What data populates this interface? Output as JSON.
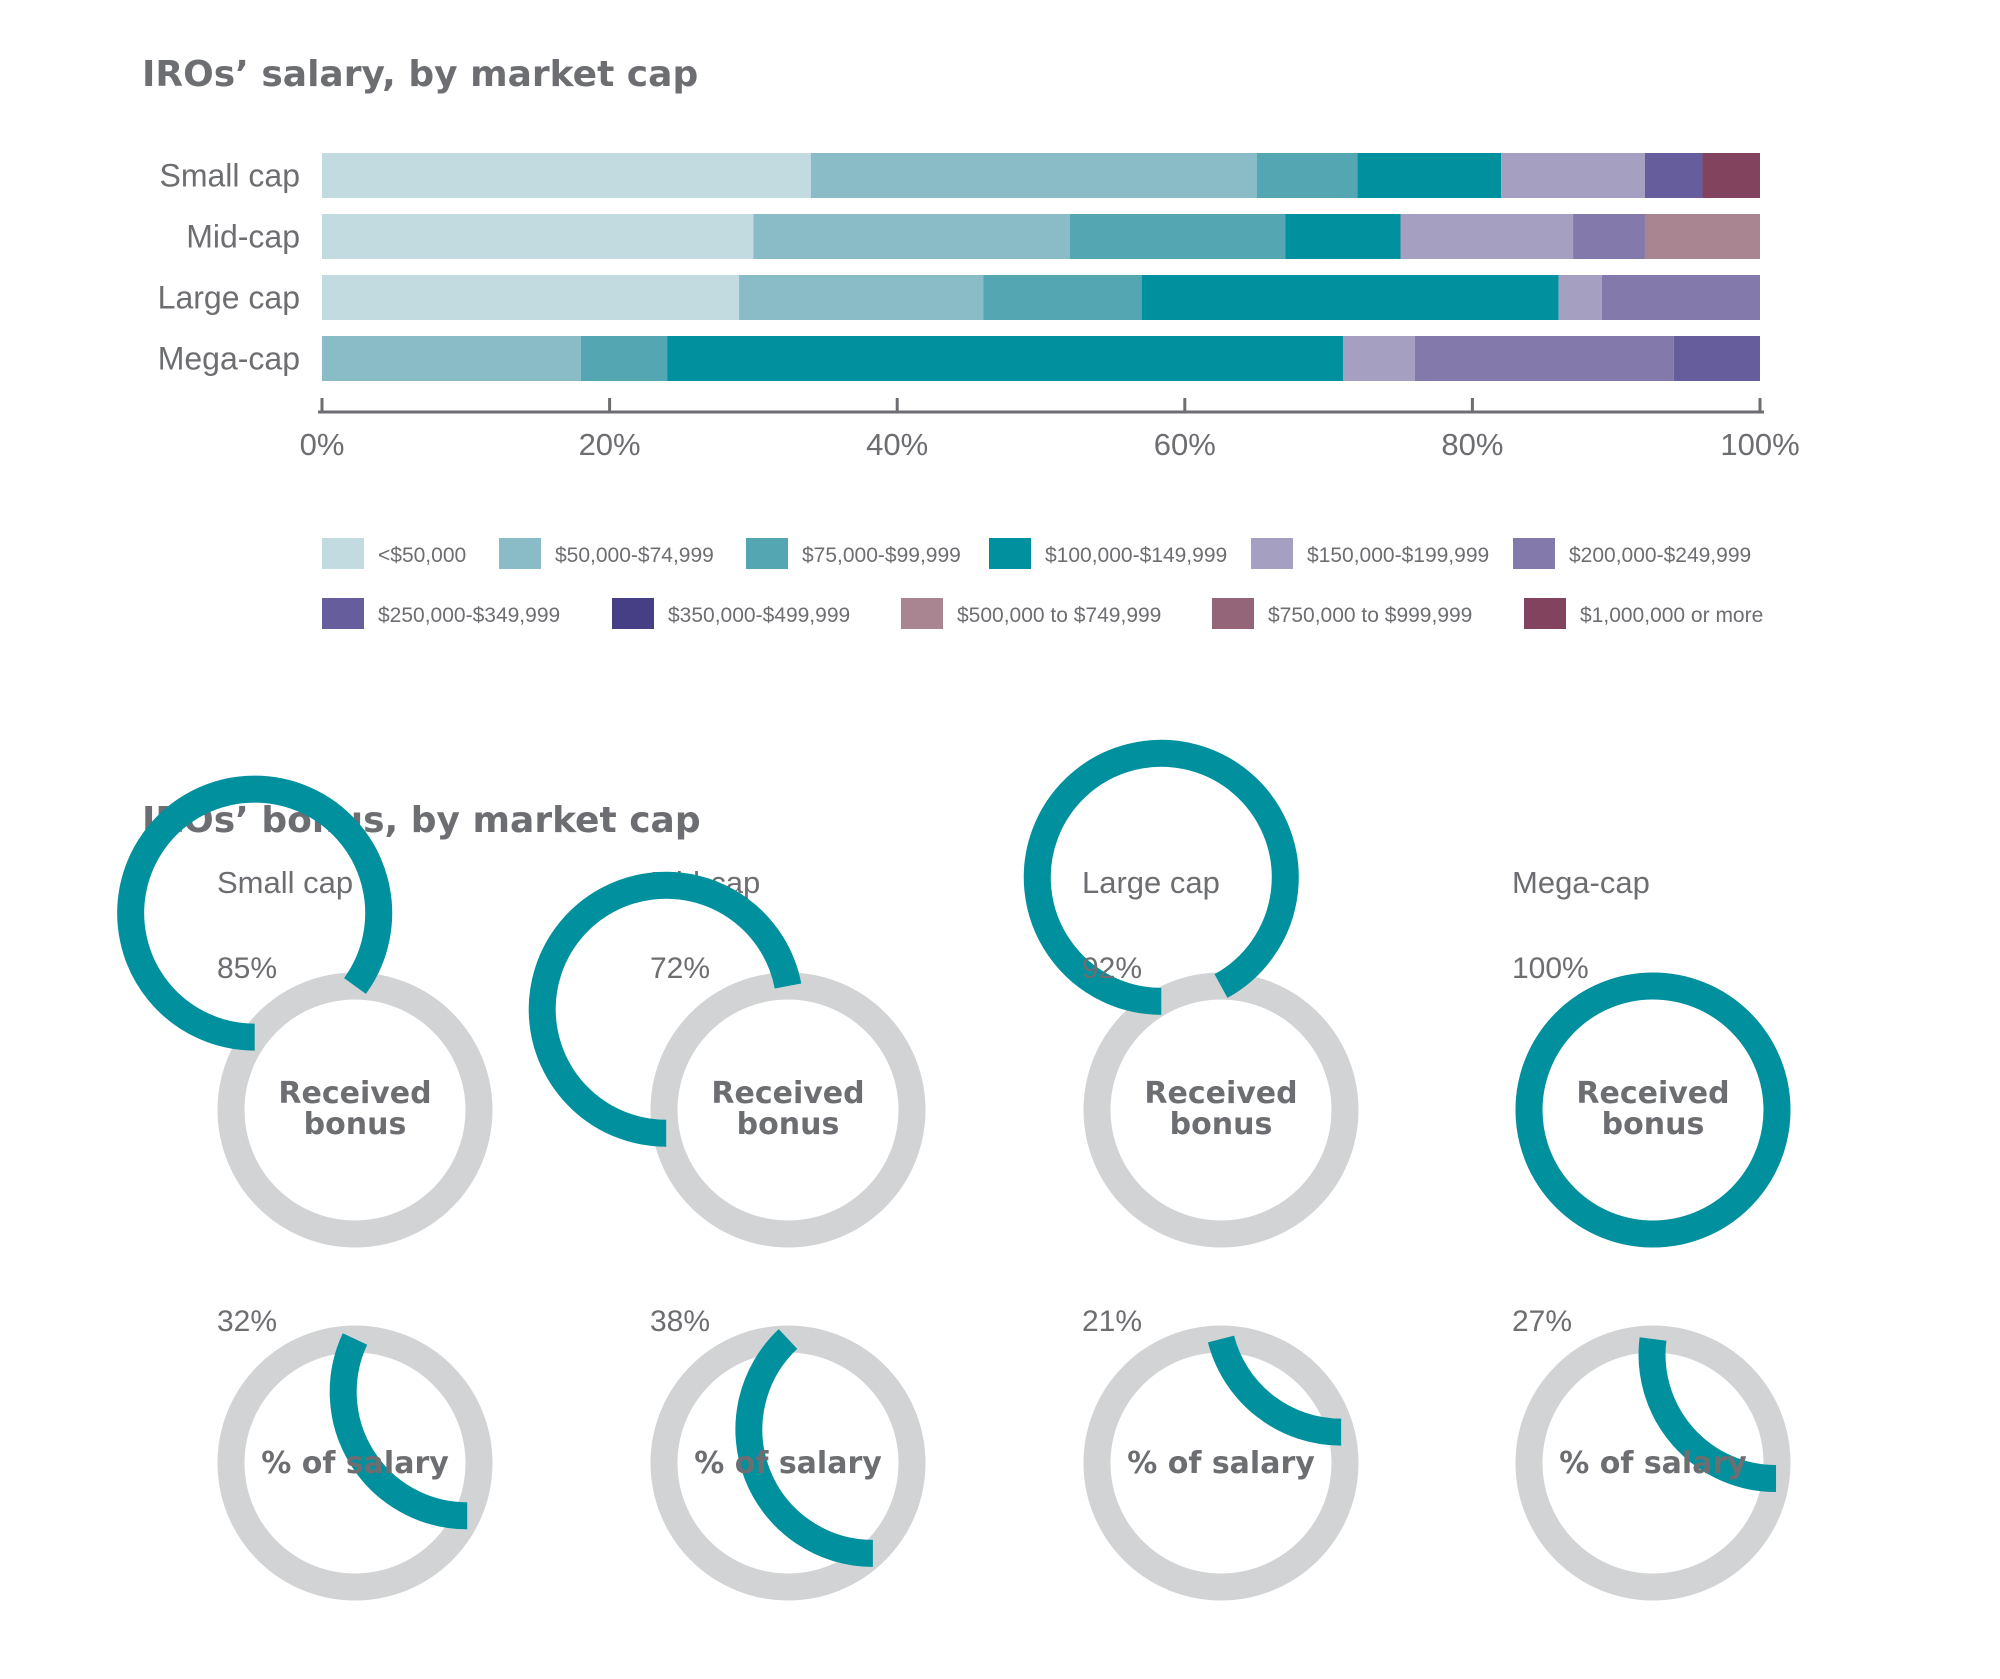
{
  "chart_data": [
    {
      "type": "bar",
      "orientation": "horizontal-stacked-percent",
      "title": "IROs’ salary, by market cap",
      "categories": [
        "Small cap",
        "Mid-cap",
        "Large cap",
        "Mega-cap"
      ],
      "xlim": [
        0,
        100
      ],
      "ticks": [
        "0%",
        "20%",
        "40%",
        "60%",
        "80%",
        "100%"
      ],
      "tick_values": [
        0,
        20,
        40,
        60,
        80,
        100
      ],
      "legend_position": "bottom",
      "series": [
        {
          "name": "<$50,000",
          "color": "#c2dbe0",
          "values": [
            34,
            30,
            29,
            0
          ]
        },
        {
          "name": "$50,000-$74,999",
          "color": "#89bcc6",
          "values": [
            31,
            22,
            17,
            18
          ]
        },
        {
          "name": "$75,000-$99,999",
          "color": "#54a6b2",
          "values": [
            7,
            15,
            11,
            6
          ]
        },
        {
          "name": "$100,000-$149,999",
          "color": "#00909e",
          "values": [
            10,
            8,
            29,
            47
          ]
        },
        {
          "name": "$150,000-$199,999",
          "color": "#a59fc2",
          "values": [
            10,
            12,
            3,
            5
          ]
        },
        {
          "name": "$200,000-$249,999",
          "color": "#837aab",
          "values": [
            0,
            5,
            11,
            18
          ]
        },
        {
          "name": "$250,000-$349,999",
          "color": "#665d9c",
          "values": [
            4,
            0,
            0,
            6
          ]
        },
        {
          "name": "$350,000-$499,999",
          "color": "#463f86",
          "values": [
            0,
            0,
            0,
            0
          ]
        },
        {
          "name": "$500,000 to $749,999",
          "color": "#a88590",
          "values": [
            0,
            8,
            0,
            0
          ]
        },
        {
          "name": "$750,000 to $999,999",
          "color": "#946478",
          "values": [
            0,
            0,
            0,
            0
          ]
        },
        {
          "name": "$1,000,000 or more",
          "color": "#82435e",
          "values": [
            4,
            0,
            0,
            0
          ]
        }
      ]
    },
    {
      "type": "pie",
      "variant": "donut",
      "title": "IROs’ bonus, by market cap",
      "colors": {
        "filled": "#00909e",
        "remainder": "#d1d3d4"
      },
      "groups": [
        {
          "name": "Small cap",
          "received_bonus": {
            "value": 85,
            "label": "85%"
          },
          "pct_of_salary": {
            "value": 32,
            "label": "32%"
          }
        },
        {
          "name": "Mid-cap",
          "received_bonus": {
            "value": 72,
            "label": "72%"
          },
          "pct_of_salary": {
            "value": 38,
            "label": "38%"
          }
        },
        {
          "name": "Large cap",
          "received_bonus": {
            "value": 92,
            "label": "92%"
          },
          "pct_of_salary": {
            "value": 21,
            "label": "21%"
          }
        },
        {
          "name": "Mega-cap",
          "received_bonus": {
            "value": 100,
            "label": "100%"
          },
          "pct_of_salary": {
            "value": 27,
            "label": "27%"
          }
        }
      ],
      "center_labels": {
        "received_bonus": [
          "Received",
          "bonus"
        ],
        "pct_of_salary": "% of salary"
      }
    }
  ]
}
